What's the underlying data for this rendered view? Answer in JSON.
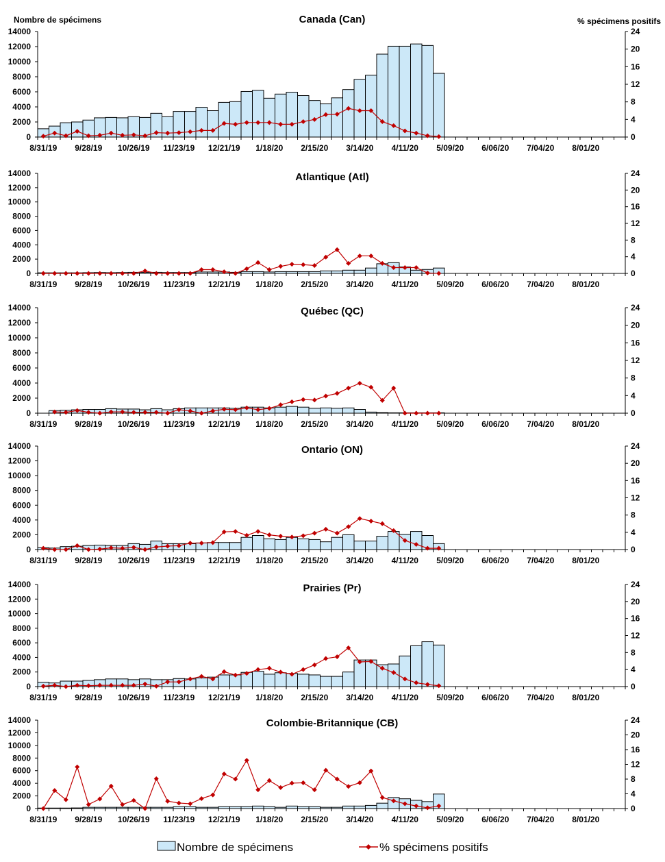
{
  "chart_data": {
    "type": "bar+line",
    "ylabel_left": "Nombre de spécimens",
    "ylabel_right": "% spécimens positifs",
    "ylim_left": [
      0,
      14000
    ],
    "ylim_right": [
      0,
      24
    ],
    "yticks_left": [
      "0",
      "2000",
      "4000",
      "6000",
      "8000",
      "10000",
      "12000",
      "14000"
    ],
    "yticks_right": [
      "0",
      "4",
      "8",
      "12",
      "16",
      "20",
      "24"
    ],
    "xticks": [
      "8/31/19",
      "9/28/19",
      "10/26/19",
      "11/23/19",
      "12/21/19",
      "1/18/20",
      "2/15/20",
      "3/14/20",
      "4/11/20",
      "5/09/20",
      "6/06/20",
      "7/04/20",
      "8/01/20"
    ],
    "weeks_total": 52,
    "legend": {
      "bars": "Nombre de spécimens",
      "line": "% spécimens positifs",
      "placement": "bottom"
    },
    "colors": {
      "bar_fill": "#cce8f8",
      "bar_stroke": "#000000",
      "line": "#c00000"
    },
    "panels": [
      {
        "title": "Canada (Can)",
        "specimens": [
          1100,
          1450,
          1900,
          2000,
          2250,
          2550,
          2600,
          2550,
          2700,
          2600,
          3150,
          2700,
          3400,
          3400,
          3950,
          3500,
          4600,
          4700,
          6050,
          6200,
          5150,
          5700,
          5950,
          5500,
          4850,
          4400,
          5200,
          6300,
          7650,
          8200,
          11000,
          12050,
          12050,
          12350,
          12150,
          8450
        ],
        "pct_positive": [
          0.2,
          0.9,
          0.3,
          1.3,
          0.3,
          0.4,
          0.9,
          0.4,
          0.5,
          0.3,
          1.0,
          0.9,
          1.0,
          1.2,
          1.5,
          1.5,
          3.1,
          2.9,
          3.3,
          3.3,
          3.3,
          2.9,
          2.9,
          3.5,
          4.0,
          5.1,
          5.2,
          6.5,
          6.0,
          6.0,
          3.5,
          2.6,
          1.4,
          0.9,
          0.3,
          0.1
        ]
      },
      {
        "title": "Atlantique (Atl)",
        "specimens": [
          80,
          80,
          80,
          80,
          100,
          120,
          100,
          120,
          150,
          150,
          150,
          120,
          120,
          120,
          200,
          200,
          200,
          150,
          250,
          250,
          200,
          250,
          250,
          250,
          250,
          350,
          350,
          450,
          450,
          750,
          1350,
          1500,
          900,
          450,
          550,
          750
        ],
        "pct_positive": [
          0,
          0,
          0,
          0,
          0,
          0,
          0,
          0,
          0,
          0.6,
          0,
          0,
          0,
          0,
          0.9,
          0.9,
          0.4,
          0,
          1.1,
          2.6,
          0.9,
          1.7,
          2.2,
          2.1,
          1.9,
          3.9,
          5.7,
          2.4,
          4.2,
          4.2,
          2.4,
          1.4,
          1.4,
          1.4,
          0.1,
          0
        ]
      },
      {
        "title": "Québec (QC)",
        "specimens": [
          0,
          350,
          400,
          450,
          500,
          500,
          600,
          550,
          550,
          450,
          600,
          450,
          600,
          700,
          700,
          700,
          700,
          650,
          800,
          800,
          700,
          800,
          900,
          800,
          650,
          700,
          650,
          700,
          500,
          150,
          80,
          50,
          50,
          50,
          50,
          50
        ],
        "pct_positive": [
          null,
          0.3,
          0.2,
          0.6,
          0.2,
          0,
          0.3,
          0.3,
          0.2,
          0.2,
          0.2,
          0,
          0.8,
          0.5,
          0,
          0.5,
          0.9,
          0.8,
          1.2,
          0.8,
          1.1,
          1.9,
          2.6,
          3.1,
          3.0,
          3.9,
          4.5,
          5.7,
          6.8,
          5.9,
          2.9,
          5.7,
          0,
          0,
          0,
          0
        ]
      },
      {
        "title": "Ontario (ON)",
        "specimens": [
          250,
          200,
          400,
          450,
          550,
          600,
          550,
          550,
          800,
          700,
          1150,
          800,
          800,
          800,
          900,
          950,
          950,
          950,
          1650,
          1900,
          1450,
          1350,
          1650,
          1450,
          1350,
          1050,
          1650,
          2000,
          1150,
          1150,
          1800,
          2450,
          2050,
          2450,
          1900,
          800
        ],
        "pct_positive": [
          0.3,
          0,
          0,
          0.9,
          0,
          0.1,
          0.4,
          0.3,
          0.5,
          0,
          0.6,
          0.8,
          0.9,
          1.5,
          1.5,
          1.6,
          4.1,
          4.2,
          3.3,
          4.2,
          3.4,
          3.1,
          2.9,
          3.2,
          3.8,
          4.7,
          3.8,
          5.3,
          7.2,
          6.6,
          6.0,
          4.4,
          2.1,
          1.2,
          0.3,
          0.3
        ]
      },
      {
        "title": "Prairies (Pr)",
        "specimens": [
          600,
          500,
          750,
          750,
          850,
          950,
          1050,
          1050,
          950,
          1050,
          950,
          950,
          1100,
          1050,
          1200,
          1300,
          1600,
          1600,
          1950,
          2100,
          1700,
          1900,
          1800,
          1700,
          1600,
          1400,
          1400,
          2000,
          3650,
          3650,
          3000,
          3100,
          4200,
          5600,
          6150,
          5700
        ],
        "pct_positive": [
          0.1,
          0.3,
          0,
          0.3,
          0.2,
          0.3,
          0.3,
          0.3,
          0.3,
          0.6,
          0.1,
          1.1,
          1.1,
          1.8,
          2.4,
          1.8,
          3.5,
          2.7,
          3.1,
          4.0,
          4.3,
          3.4,
          2.9,
          4.0,
          5.1,
          6.6,
          7.0,
          9.1,
          5.8,
          5.9,
          4.3,
          3.3,
          1.8,
          0.9,
          0.5,
          0.2
        ]
      },
      {
        "title": "Colombie-Britannique (CB)",
        "specimens": [
          80,
          80,
          80,
          100,
          200,
          200,
          200,
          200,
          200,
          200,
          200,
          200,
          300,
          300,
          200,
          200,
          300,
          300,
          300,
          400,
          300,
          200,
          400,
          300,
          300,
          200,
          200,
          400,
          400,
          500,
          850,
          1750,
          1550,
          1300,
          1100,
          2300
        ],
        "pct_positive": [
          0,
          4.9,
          2.4,
          11.3,
          1.1,
          2.6,
          6.1,
          1.1,
          2.2,
          0,
          8.1,
          2.0,
          1.5,
          1.3,
          2.7,
          3.7,
          9.4,
          8.0,
          13.1,
          5.1,
          7.6,
          5.7,
          6.9,
          7.0,
          5.1,
          10.4,
          8.0,
          6.0,
          7.0,
          10.2,
          3.0,
          2.1,
          1.3,
          0.7,
          0.2,
          0.7
        ]
      }
    ]
  }
}
